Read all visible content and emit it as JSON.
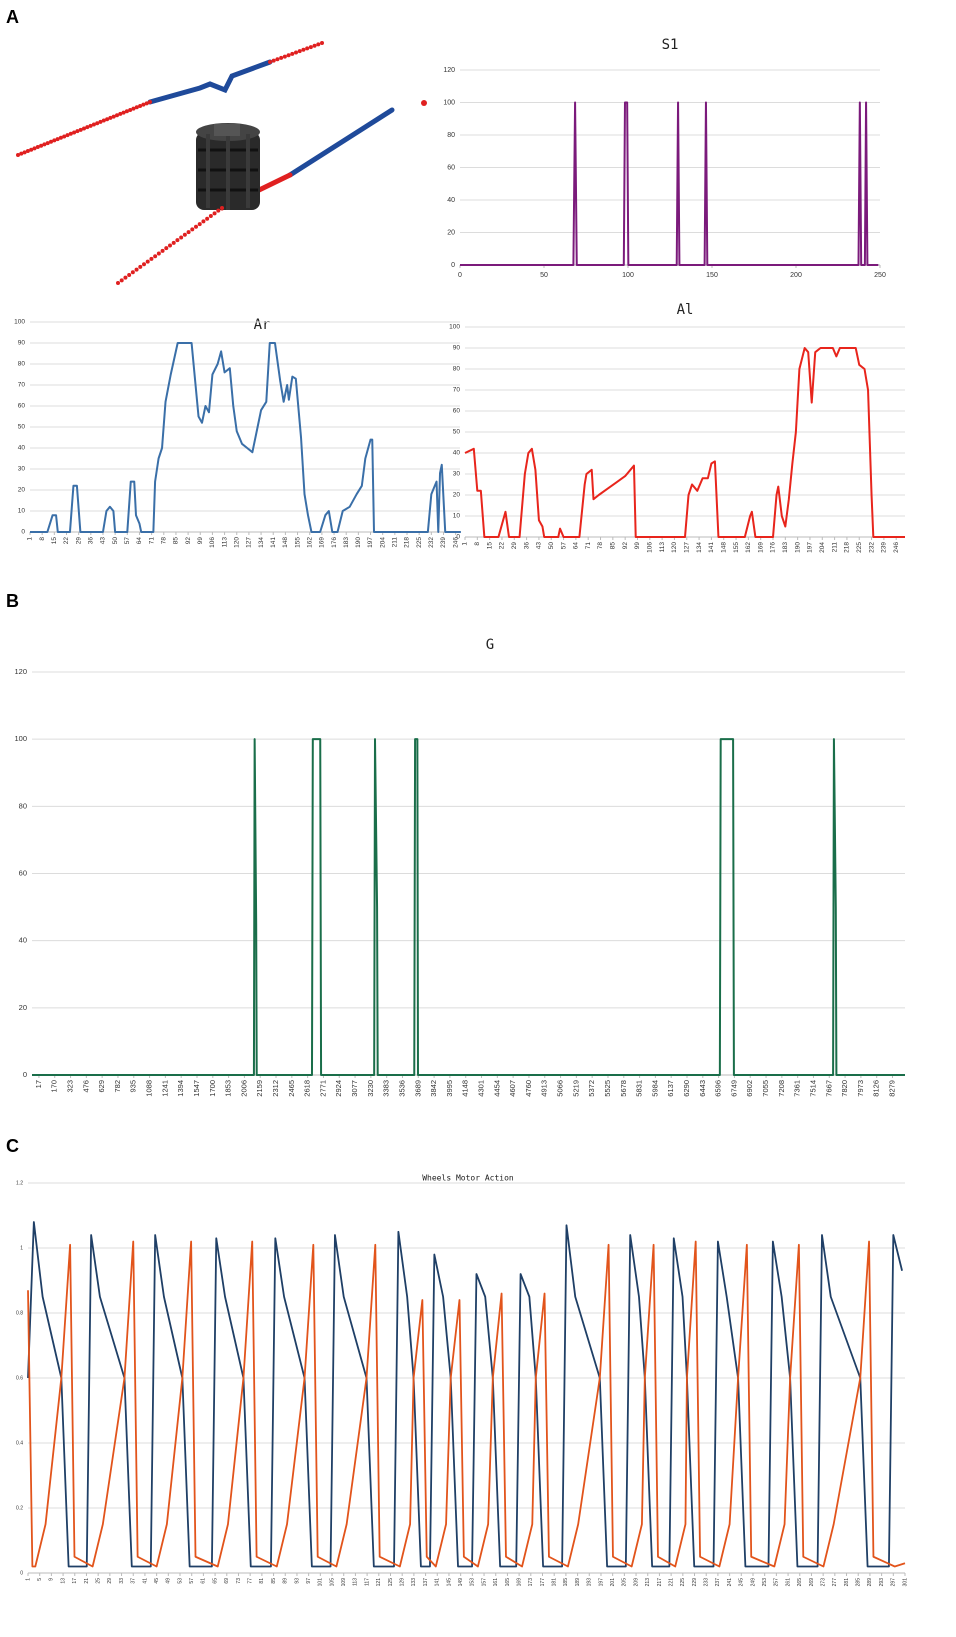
{
  "panels": [
    "A",
    "B",
    "C"
  ],
  "chart_data": [
    {
      "type": "line",
      "title": "S1",
      "xlim": [
        0,
        250
      ],
      "ylim": [
        0,
        120
      ],
      "xticks": [
        0,
        50,
        100,
        150,
        200,
        250
      ],
      "yticks": [
        0,
        20,
        40,
        60,
        80,
        100,
        120
      ],
      "grid": true,
      "rotate_xticks": false,
      "series": [
        {
          "color": "#7b1a7b",
          "x": [
            0,
            67.5,
            68.5,
            69.5,
            97.5,
            98.2,
            99.5,
            100.2,
            129,
            129.8,
            130.6,
            145.6,
            146.4,
            147.2,
            237.2,
            238,
            238.8,
            241,
            241.7,
            242.5,
            249
          ],
          "values": [
            0,
            0,
            100,
            0,
            0,
            100,
            100,
            0,
            0,
            100,
            0,
            0,
            100,
            0,
            0,
            100,
            0,
            0,
            100,
            0,
            0
          ]
        }
      ]
    },
    {
      "type": "line",
      "title": "Ar",
      "xlim": [
        1,
        248.5
      ],
      "ylim": [
        0,
        100
      ],
      "xticks": [
        1,
        8,
        15,
        22,
        29,
        36,
        43,
        50,
        57,
        64,
        71,
        78,
        85,
        92,
        99,
        106,
        113,
        120,
        127,
        134,
        141,
        148,
        155,
        162,
        169,
        176,
        183,
        190,
        197,
        204,
        211,
        218,
        225,
        232,
        239,
        246
      ],
      "yticks": [
        0,
        10,
        20,
        30,
        40,
        50,
        60,
        70,
        80,
        90,
        100
      ],
      "grid": true,
      "rotate_xticks": true,
      "series": [
        {
          "color": "#3a6fa8",
          "x": [
            1,
            11,
            14,
            16,
            17,
            24,
            26,
            28,
            30,
            43,
            45,
            47,
            49,
            50,
            57,
            59,
            61,
            62,
            64,
            65,
            72,
            73,
            75,
            77,
            79,
            82,
            86,
            94,
            98,
            100,
            102,
            104,
            106,
            109,
            111,
            113,
            116,
            118,
            120,
            123,
            126,
            129,
            132,
            134,
            137,
            139,
            142,
            145,
            147,
            149,
            150,
            152,
            154,
            157,
            159,
            161,
            163,
            168,
            171,
            173,
            175,
            178,
            181,
            185,
            189,
            192,
            194,
            197,
            198,
            199,
            230,
            232,
            234,
            235,
            236,
            237,
            238,
            240,
            249
          ],
          "values": [
            0,
            0,
            8,
            8,
            0,
            0,
            22,
            22,
            0,
            0,
            10,
            12,
            10,
            0,
            0,
            24,
            24,
            8,
            4,
            0,
            0,
            24,
            35,
            40,
            62,
            75,
            90,
            90,
            55,
            52,
            60,
            57,
            75,
            80,
            86,
            76,
            78,
            60,
            48,
            42,
            40,
            38,
            50,
            58,
            62,
            90,
            90,
            72,
            62,
            70,
            63,
            74,
            73,
            45,
            18,
            8,
            0,
            0,
            8,
            10,
            0,
            0,
            10,
            12,
            18,
            22,
            35,
            44,
            44,
            0,
            0,
            18,
            22,
            24,
            0,
            28,
            32,
            0,
            0
          ]
        }
      ]
    },
    {
      "type": "line",
      "title": "Al",
      "xlim": [
        1,
        251
      ],
      "ylim": [
        0,
        100
      ],
      "xticks": [
        1,
        8,
        15,
        22,
        29,
        36,
        43,
        50,
        57,
        64,
        71,
        78,
        85,
        92,
        99,
        106,
        113,
        120,
        127,
        134,
        141,
        148,
        155,
        162,
        169,
        176,
        183,
        190,
        197,
        204,
        211,
        218,
        225,
        232,
        239,
        246
      ],
      "yticks": [
        0,
        10,
        20,
        30,
        40,
        50,
        60,
        70,
        80,
        90,
        100
      ],
      "grid": true,
      "rotate_xticks": true,
      "series": [
        {
          "color": "#e8251c",
          "x": [
            1,
            6,
            8,
            10,
            12,
            20,
            24,
            26,
            32,
            35,
            37,
            39,
            41,
            43,
            45,
            46,
            54,
            55,
            57,
            66,
            69,
            70,
            73,
            74,
            77,
            82,
            87,
            92,
            95,
            97,
            98,
            126,
            128,
            130,
            133,
            136,
            139,
            141,
            143,
            145,
            160,
            163,
            164,
            166,
            176,
            178,
            179,
            181,
            183,
            185,
            187,
            189,
            191,
            194,
            196,
            198,
            200,
            203,
            210,
            212,
            214,
            223,
            225,
            228,
            230,
            232,
            233,
            251
          ],
          "values": [
            40,
            42,
            22,
            22,
            0,
            0,
            12,
            0,
            0,
            30,
            40,
            42,
            32,
            8,
            5,
            0,
            0,
            4,
            0,
            0,
            25,
            30,
            32,
            18,
            20,
            23,
            26,
            29,
            32,
            34,
            0,
            0,
            20,
            25,
            22,
            28,
            28,
            35,
            36,
            0,
            0,
            10,
            12,
            0,
            0,
            20,
            24,
            10,
            5,
            18,
            35,
            50,
            80,
            90,
            88,
            64,
            88,
            90,
            90,
            86,
            90,
            90,
            82,
            80,
            70,
            20,
            0,
            0
          ]
        }
      ]
    },
    {
      "type": "line",
      "title": "G",
      "xlim": [
        -50,
        8400
      ],
      "ylim": [
        0,
        120
      ],
      "xticks": [
        17,
        170,
        323,
        476,
        629,
        782,
        935,
        1088,
        1241,
        1394,
        1547,
        1700,
        1853,
        2006,
        2159,
        2312,
        2465,
        2618,
        2771,
        2924,
        3077,
        3230,
        3383,
        3536,
        3689,
        3842,
        3995,
        4148,
        4301,
        4454,
        4607,
        4760,
        4913,
        5066,
        5219,
        5372,
        5525,
        5678,
        5831,
        5984,
        6137,
        6290,
        6443,
        6596,
        6749,
        6902,
        7055,
        7208,
        7361,
        7514,
        7667,
        7820,
        7973,
        8126,
        8279
      ],
      "yticks": [
        0,
        20,
        40,
        60,
        80,
        100,
        120
      ],
      "grid": true,
      "rotate_xticks": true,
      "series": [
        {
          "color": "#1a6e4a",
          "x": [
            -50,
            2098,
            2105,
            2120,
            2125,
            2660,
            2668,
            2740,
            2748,
            3262,
            3270,
            3290,
            3296,
            3650,
            3658,
            3680,
            3686,
            6608,
            6616,
            6736,
            6744,
            7704,
            7712,
            7730,
            7736,
            8400
          ],
          "values": [
            0,
            0,
            100,
            45,
            0,
            0,
            100,
            100,
            0,
            0,
            100,
            50,
            0,
            0,
            100,
            100,
            0,
            0,
            100,
            100,
            0,
            0,
            100,
            50,
            0,
            0
          ]
        }
      ]
    },
    {
      "type": "line",
      "title": "Wheels Motor Action",
      "xlim": [
        1,
        301
      ],
      "ylim": [
        0,
        1.2
      ],
      "xticks": [
        1,
        5,
        9,
        13,
        17,
        21,
        25,
        29,
        33,
        37,
        41,
        45,
        49,
        53,
        57,
        61,
        65,
        69,
        73,
        77,
        81,
        85,
        89,
        93,
        97,
        101,
        105,
        109,
        113,
        117,
        121,
        125,
        129,
        133,
        137,
        141,
        145,
        149,
        153,
        157,
        161,
        165,
        169,
        173,
        177,
        181,
        185,
        189,
        193,
        197,
        201,
        205,
        209,
        213,
        217,
        221,
        225,
        229,
        233,
        237,
        241,
        245,
        249,
        253,
        257,
        261,
        265,
        269,
        273,
        277,
        281,
        285,
        289,
        293,
        297,
        301
      ],
      "yticks": [
        0,
        0.2,
        0.4,
        0.6,
        0.8,
        1,
        1.2
      ],
      "grid": true,
      "rotate_xticks": true,
      "series": [
        {
          "color": "#1f3f66",
          "x": [
            1,
            3,
            6,
            12.4,
            14.9,
            21.1,
            22.6,
            25.6,
            34,
            36.5,
            43,
            44.5,
            47.5,
            53.8,
            56.3,
            63.9,
            65.4,
            68.4,
            74.7,
            77.2,
            84.1,
            85.6,
            88.6,
            95.6,
            98.1,
            104.5,
            106,
            109,
            116.8,
            119.3,
            126.2,
            127.7,
            130.7,
            132.9,
            135.4,
            138.5,
            140,
            143,
            145.6,
            148.1,
            152.9,
            154.4,
            157.4,
            160,
            162.5,
            168,
            169.5,
            172.5,
            174.7,
            177.2,
            183.7,
            185.2,
            188.2,
            196.6,
            199.1,
            205.5,
            207,
            210,
            212,
            214.5,
            220.4,
            221.9,
            224.9,
            226.4,
            228.9,
            235.5,
            237,
            240,
            243.9,
            246.4,
            254.3,
            255.8,
            258.8,
            261.7,
            264.2,
            271.1,
            272.6,
            275.6,
            285.7,
            288.2,
            295.5,
            297,
            300
          ],
          "values": [
            0.6,
            1.08,
            0.85,
            0.6,
            0.02,
            0.02,
            1.04,
            0.85,
            0.6,
            0.02,
            0.02,
            1.04,
            0.85,
            0.6,
            0.02,
            0.02,
            1.03,
            0.85,
            0.6,
            0.02,
            0.02,
            1.03,
            0.85,
            0.6,
            0.02,
            0.02,
            1.04,
            0.85,
            0.6,
            0.02,
            0.02,
            1.05,
            0.85,
            0.6,
            0.02,
            0.02,
            0.98,
            0.85,
            0.6,
            0.02,
            0.02,
            0.92,
            0.85,
            0.6,
            0.02,
            0.02,
            0.92,
            0.85,
            0.6,
            0.02,
            0.02,
            1.07,
            0.85,
            0.6,
            0.02,
            0.02,
            1.04,
            0.85,
            0.6,
            0.02,
            0.02,
            1.03,
            0.85,
            0.6,
            0.02,
            0.02,
            1.02,
            0.85,
            0.6,
            0.02,
            0.02,
            1.02,
            0.85,
            0.6,
            0.02,
            0.02,
            1.04,
            0.85,
            0.6,
            0.02,
            0.02,
            1.04,
            0.93
          ]
        },
        {
          "color": "#e2541b",
          "x": [
            1,
            2.5,
            3.5,
            7,
            12.4,
            15.4,
            16.9,
            23.1,
            26.6,
            34,
            37,
            38.5,
            45,
            48.5,
            53.8,
            56.8,
            58.3,
            65.9,
            69.4,
            74.7,
            77.7,
            79.2,
            86.1,
            89.6,
            95.6,
            98.6,
            100.1,
            106.5,
            110,
            116.8,
            119.8,
            121.3,
            128.2,
            131.7,
            132.9,
            135.9,
            137.4,
            140.5,
            144,
            145.6,
            148.6,
            150.1,
            154.9,
            158.4,
            160,
            163,
            164.5,
            170,
            173.5,
            174.7,
            177.7,
            179.2,
            185.7,
            189.2,
            196.6,
            199.6,
            201.1,
            207.5,
            211,
            212,
            215,
            216.5,
            222.4,
            225.9,
            226.4,
            229.4,
            230.9,
            237.5,
            241,
            243.9,
            246.9,
            248.4,
            256.3,
            259.8,
            261.7,
            264.7,
            266.2,
            273.1,
            276.6,
            285.7,
            288.7,
            290.2,
            297.5,
            301
          ],
          "values": [
            0.87,
            0.02,
            0.02,
            0.15,
            0.6,
            1.01,
            0.05,
            0.02,
            0.15,
            0.6,
            1.02,
            0.05,
            0.02,
            0.15,
            0.6,
            1.02,
            0.05,
            0.02,
            0.15,
            0.6,
            1.02,
            0.05,
            0.02,
            0.15,
            0.6,
            1.01,
            0.05,
            0.02,
            0.15,
            0.6,
            1.01,
            0.05,
            0.02,
            0.15,
            0.6,
            0.84,
            0.05,
            0.02,
            0.15,
            0.6,
            0.84,
            0.05,
            0.02,
            0.15,
            0.6,
            0.86,
            0.05,
            0.02,
            0.15,
            0.6,
            0.86,
            0.05,
            0.02,
            0.15,
            0.6,
            1.01,
            0.05,
            0.02,
            0.15,
            0.6,
            1.01,
            0.05,
            0.02,
            0.15,
            0.6,
            1.02,
            0.05,
            0.02,
            0.15,
            0.6,
            1.01,
            0.05,
            0.02,
            0.15,
            0.6,
            1.01,
            0.05,
            0.02,
            0.15,
            0.6,
            1.02,
            0.05,
            0.02,
            0.03
          ]
        }
      ]
    }
  ]
}
